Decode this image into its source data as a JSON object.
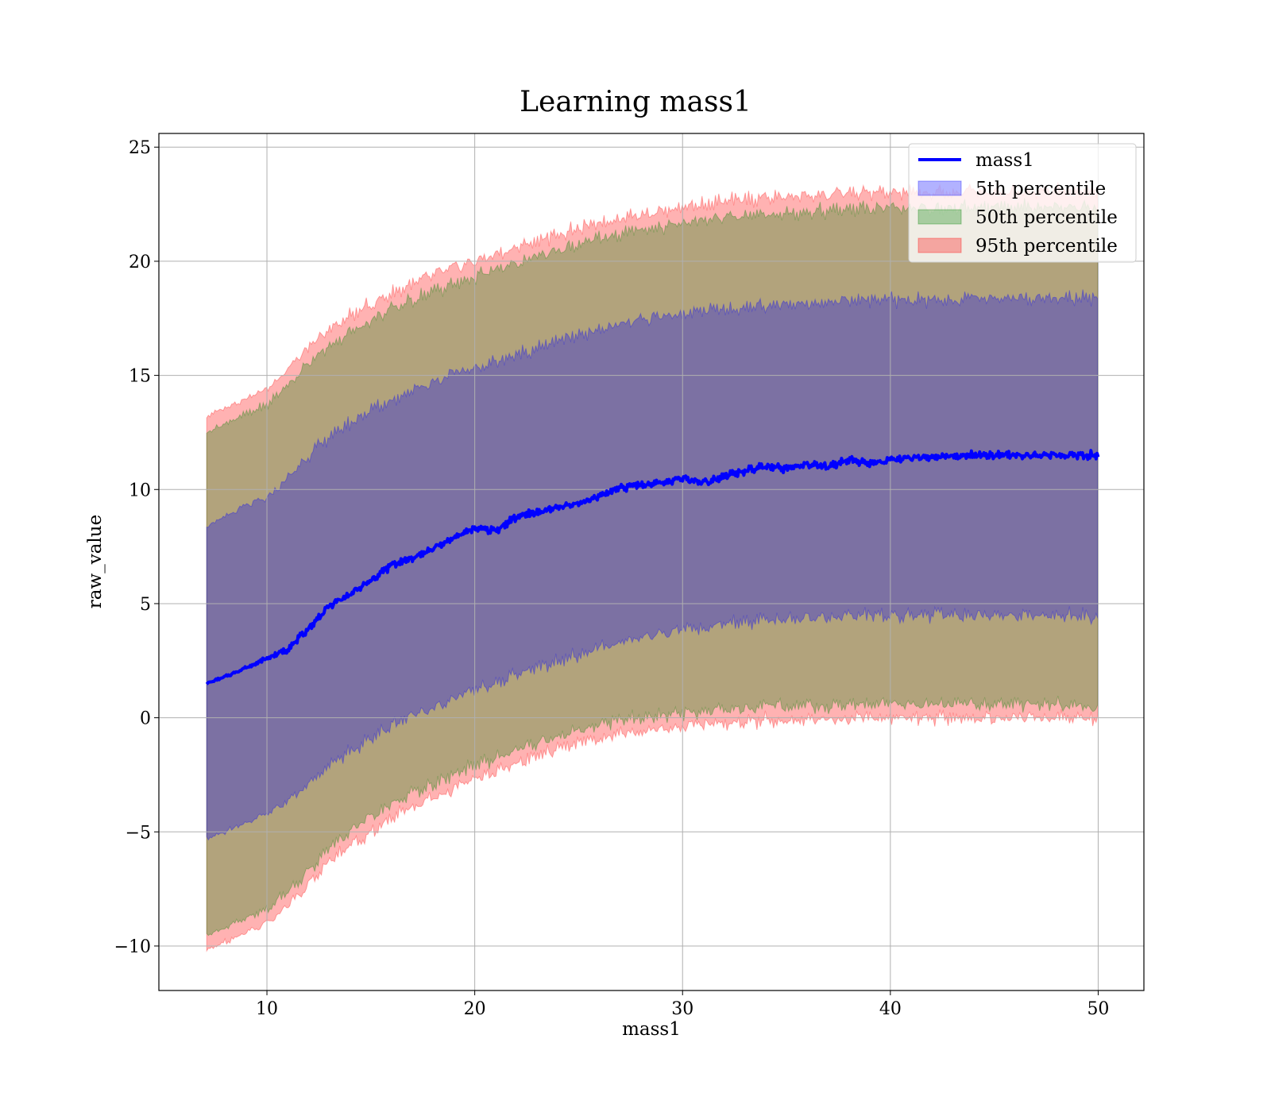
{
  "chart_data": {
    "type": "area",
    "title": "Learning mass1",
    "xlabel": "mass1",
    "ylabel": "raw_value",
    "xlim": [
      4.8,
      52.2
    ],
    "ylim": [
      -11.95,
      25.6
    ],
    "xticks": [
      10,
      20,
      30,
      40,
      50
    ],
    "yticks": [
      -10,
      -5,
      0,
      5,
      10,
      15,
      20,
      25
    ],
    "xtick_labels": [
      "10",
      "20",
      "30",
      "40",
      "50"
    ],
    "ytick_labels": [
      "−10",
      "−5",
      "0",
      "5",
      "10",
      "15",
      "20",
      "25"
    ],
    "grid": true,
    "legend_placement": "top-right",
    "x_range": [
      7.1,
      50
    ],
    "series": [
      {
        "name": "mass1",
        "kind": "line",
        "color": "#0000ff",
        "points": [
          [
            7.1,
            1.5
          ],
          [
            8,
            1.8
          ],
          [
            9,
            2.2
          ],
          [
            10,
            2.6
          ],
          [
            11,
            3.0
          ],
          [
            12,
            3.9
          ],
          [
            13,
            4.9
          ],
          [
            14,
            5.4
          ],
          [
            15,
            6.0
          ],
          [
            16,
            6.7
          ],
          [
            17,
            7.0
          ],
          [
            18,
            7.4
          ],
          [
            19,
            7.9
          ],
          [
            20,
            8.3
          ],
          [
            21,
            8.2
          ],
          [
            22,
            8.8
          ],
          [
            23,
            9.0
          ],
          [
            24,
            9.2
          ],
          [
            25,
            9.4
          ],
          [
            26,
            9.7
          ],
          [
            27,
            10.1
          ],
          [
            28,
            10.2
          ],
          [
            29,
            10.3
          ],
          [
            30,
            10.5
          ],
          [
            31,
            10.3
          ],
          [
            32,
            10.6
          ],
          [
            33,
            10.8
          ],
          [
            34,
            11.0
          ],
          [
            35,
            10.9
          ],
          [
            36,
            11.1
          ],
          [
            37,
            11.0
          ],
          [
            38,
            11.3
          ],
          [
            39,
            11.1
          ],
          [
            40,
            11.3
          ],
          [
            41,
            11.4
          ],
          [
            42,
            11.4
          ],
          [
            43,
            11.5
          ],
          [
            44,
            11.5
          ],
          [
            45,
            11.5
          ],
          [
            46,
            11.5
          ],
          [
            47,
            11.5
          ],
          [
            48,
            11.5
          ],
          [
            49,
            11.5
          ],
          [
            50,
            11.5
          ]
        ]
      },
      {
        "name": "5th percentile",
        "kind": "band",
        "color": "#0000ff",
        "opacity": 0.3,
        "x": [
          7.1,
          8,
          9,
          10,
          11,
          12,
          13,
          14,
          15,
          16,
          17,
          18,
          19,
          20,
          21,
          22,
          23,
          24,
          25,
          26,
          27,
          28,
          29,
          30,
          31,
          32,
          33,
          34,
          35,
          36,
          37,
          38,
          39,
          40,
          41,
          42,
          43,
          44,
          45,
          46,
          47,
          48,
          49,
          50
        ],
        "lower": [
          -5.3,
          -5.0,
          -4.6,
          -4.2,
          -3.6,
          -2.9,
          -2.1,
          -1.5,
          -0.9,
          -0.3,
          0.1,
          0.4,
          0.9,
          1.3,
          1.5,
          1.9,
          2.2,
          2.5,
          2.8,
          3.1,
          3.3,
          3.5,
          3.7,
          3.8,
          3.9,
          4.1,
          4.2,
          4.3,
          4.3,
          4.4,
          4.4,
          4.5,
          4.5,
          4.5,
          4.5,
          4.5,
          4.5,
          4.5,
          4.5,
          4.5,
          4.5,
          4.5,
          4.5,
          4.4
        ],
        "upper": [
          8.4,
          8.8,
          9.3,
          9.6,
          10.5,
          11.5,
          12.3,
          12.9,
          13.5,
          13.9,
          14.4,
          14.7,
          15.1,
          15.3,
          15.6,
          15.9,
          16.2,
          16.5,
          16.8,
          17.0,
          17.2,
          17.4,
          17.6,
          17.7,
          17.8,
          17.9,
          18.0,
          18.1,
          18.1,
          18.2,
          18.2,
          18.3,
          18.3,
          18.3,
          18.3,
          18.3,
          18.3,
          18.4,
          18.4,
          18.4,
          18.4,
          18.4,
          18.4,
          18.3
        ]
      },
      {
        "name": "50th percentile",
        "kind": "band",
        "color": "#008000",
        "opacity": 0.3,
        "x": [
          7.1,
          8,
          9,
          10,
          11,
          12,
          13,
          14,
          15,
          16,
          17,
          18,
          19,
          20,
          21,
          22,
          23,
          24,
          25,
          26,
          27,
          28,
          29,
          30,
          31,
          32,
          33,
          34,
          35,
          36,
          37,
          38,
          39,
          40,
          41,
          42,
          43,
          44,
          45,
          46,
          47,
          48,
          49,
          50
        ],
        "lower": [
          -9.5,
          -9.2,
          -8.8,
          -8.4,
          -7.6,
          -6.7,
          -5.7,
          -5.0,
          -4.4,
          -3.8,
          -3.3,
          -2.9,
          -2.5,
          -2.1,
          -1.8,
          -1.4,
          -1.1,
          -0.8,
          -0.5,
          -0.3,
          -0.1,
          0.0,
          0.1,
          0.2,
          0.3,
          0.4,
          0.4,
          0.5,
          0.5,
          0.5,
          0.5,
          0.6,
          0.6,
          0.6,
          0.6,
          0.6,
          0.6,
          0.6,
          0.6,
          0.6,
          0.6,
          0.6,
          0.6,
          0.5
        ],
        "upper": [
          12.5,
          12.9,
          13.3,
          13.7,
          14.6,
          15.5,
          16.3,
          16.9,
          17.4,
          17.9,
          18.3,
          18.7,
          19.0,
          19.3,
          19.6,
          19.9,
          20.2,
          20.5,
          20.7,
          21.0,
          21.2,
          21.4,
          21.5,
          21.7,
          21.8,
          21.9,
          22.0,
          22.1,
          22.1,
          22.2,
          22.2,
          22.3,
          22.3,
          22.3,
          22.3,
          22.3,
          22.3,
          22.4,
          22.4,
          22.4,
          22.4,
          22.4,
          22.4,
          22.3
        ]
      },
      {
        "name": "95th percentile",
        "kind": "band",
        "color": "#ff0000",
        "opacity": 0.3,
        "x": [
          7.1,
          8,
          9,
          10,
          11,
          12,
          13,
          14,
          15,
          16,
          17,
          18,
          19,
          20,
          21,
          22,
          23,
          24,
          25,
          26,
          27,
          28,
          29,
          30,
          31,
          32,
          33,
          34,
          35,
          36,
          37,
          38,
          39,
          40,
          41,
          42,
          43,
          44,
          45,
          46,
          47,
          48,
          49,
          50
        ],
        "lower": [
          -10.2,
          -9.8,
          -9.4,
          -9.0,
          -8.2,
          -7.3,
          -6.3,
          -5.6,
          -5.0,
          -4.4,
          -3.9,
          -3.5,
          -3.1,
          -2.7,
          -2.4,
          -2.0,
          -1.7,
          -1.4,
          -1.1,
          -0.9,
          -0.7,
          -0.6,
          -0.5,
          -0.4,
          -0.3,
          -0.2,
          -0.2,
          -0.1,
          -0.1,
          -0.1,
          -0.1,
          0.0,
          0.0,
          0.0,
          0.0,
          0.0,
          0.0,
          0.0,
          0.0,
          0.0,
          0.0,
          0.0,
          0.0,
          -0.1
        ],
        "upper": [
          13.2,
          13.6,
          14.0,
          14.4,
          15.3,
          16.2,
          17.0,
          17.6,
          18.1,
          18.6,
          19.0,
          19.4,
          19.7,
          20.0,
          20.3,
          20.6,
          20.9,
          21.2,
          21.4,
          21.7,
          21.9,
          22.1,
          22.2,
          22.4,
          22.5,
          22.6,
          22.7,
          22.8,
          22.8,
          22.9,
          22.9,
          23.0,
          23.0,
          23.0,
          23.0,
          23.0,
          23.0,
          23.1,
          23.1,
          23.1,
          23.1,
          23.1,
          23.1,
          23.0
        ]
      }
    ]
  }
}
